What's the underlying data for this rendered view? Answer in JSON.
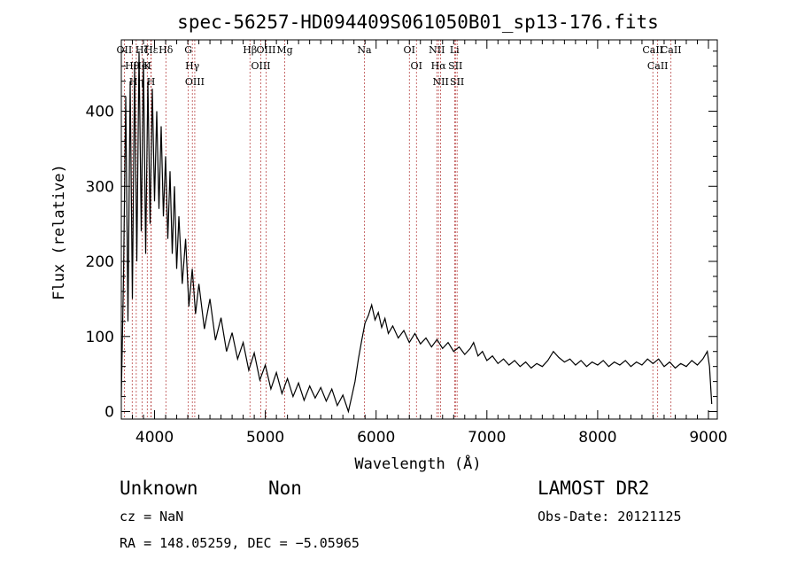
{
  "chart_data": {
    "type": "line",
    "title": "spec-56257-HD094409S061050B01_sp13-176.fits",
    "xlabel": "Wavelength (Å)",
    "ylabel": "Flux (relative)",
    "xlim": [
      3700,
      9080
    ],
    "ylim": [
      -10,
      495
    ],
    "xticks": [
      4000,
      5000,
      6000,
      7000,
      8000,
      9000
    ],
    "yticks": [
      0,
      100,
      200,
      300,
      400
    ],
    "grid": false,
    "series": [
      {
        "color": "#000000",
        "points": [
          [
            3700,
            20
          ],
          [
            3720,
            180
          ],
          [
            3740,
            420
          ],
          [
            3760,
            120
          ],
          [
            3780,
            440
          ],
          [
            3800,
            150
          ],
          [
            3820,
            460
          ],
          [
            3840,
            200
          ],
          [
            3860,
            480
          ],
          [
            3880,
            240
          ],
          [
            3900,
            470
          ],
          [
            3920,
            210
          ],
          [
            3940,
            440
          ],
          [
            3960,
            250
          ],
          [
            3980,
            430
          ],
          [
            4000,
            280
          ],
          [
            4020,
            400
          ],
          [
            4040,
            270
          ],
          [
            4060,
            380
          ],
          [
            4080,
            260
          ],
          [
            4100,
            340
          ],
          [
            4120,
            230
          ],
          [
            4140,
            320
          ],
          [
            4160,
            210
          ],
          [
            4180,
            300
          ],
          [
            4200,
            190
          ],
          [
            4220,
            260
          ],
          [
            4250,
            170
          ],
          [
            4280,
            230
          ],
          [
            4310,
            140
          ],
          [
            4340,
            190
          ],
          [
            4370,
            130
          ],
          [
            4400,
            170
          ],
          [
            4450,
            110
          ],
          [
            4500,
            150
          ],
          [
            4550,
            95
          ],
          [
            4600,
            125
          ],
          [
            4650,
            80
          ],
          [
            4700,
            105
          ],
          [
            4750,
            70
          ],
          [
            4800,
            92
          ],
          [
            4850,
            55
          ],
          [
            4900,
            78
          ],
          [
            4950,
            42
          ],
          [
            5000,
            62
          ],
          [
            5050,
            30
          ],
          [
            5100,
            52
          ],
          [
            5150,
            24
          ],
          [
            5200,
            44
          ],
          [
            5250,
            20
          ],
          [
            5300,
            38
          ],
          [
            5350,
            15
          ],
          [
            5400,
            34
          ],
          [
            5450,
            18
          ],
          [
            5500,
            32
          ],
          [
            5550,
            14
          ],
          [
            5600,
            30
          ],
          [
            5650,
            8
          ],
          [
            5700,
            22
          ],
          [
            5750,
            0
          ],
          [
            5780,
            20
          ],
          [
            5810,
            40
          ],
          [
            5840,
            70
          ],
          [
            5870,
            95
          ],
          [
            5900,
            118
          ],
          [
            5930,
            128
          ],
          [
            5960,
            142
          ],
          [
            5990,
            122
          ],
          [
            6020,
            132
          ],
          [
            6050,
            112
          ],
          [
            6080,
            124
          ],
          [
            6110,
            104
          ],
          [
            6150,
            114
          ],
          [
            6200,
            98
          ],
          [
            6250,
            108
          ],
          [
            6300,
            92
          ],
          [
            6350,
            104
          ],
          [
            6400,
            90
          ],
          [
            6450,
            98
          ],
          [
            6500,
            86
          ],
          [
            6550,
            96
          ],
          [
            6600,
            84
          ],
          [
            6650,
            92
          ],
          [
            6700,
            80
          ],
          [
            6750,
            86
          ],
          [
            6800,
            76
          ],
          [
            6850,
            84
          ],
          [
            6880,
            92
          ],
          [
            6920,
            74
          ],
          [
            6960,
            80
          ],
          [
            7000,
            68
          ],
          [
            7050,
            74
          ],
          [
            7100,
            64
          ],
          [
            7150,
            70
          ],
          [
            7200,
            62
          ],
          [
            7250,
            68
          ],
          [
            7300,
            60
          ],
          [
            7350,
            66
          ],
          [
            7400,
            58
          ],
          [
            7450,
            64
          ],
          [
            7500,
            60
          ],
          [
            7550,
            68
          ],
          [
            7600,
            80
          ],
          [
            7650,
            72
          ],
          [
            7700,
            66
          ],
          [
            7750,
            70
          ],
          [
            7800,
            62
          ],
          [
            7850,
            68
          ],
          [
            7900,
            60
          ],
          [
            7950,
            66
          ],
          [
            8000,
            62
          ],
          [
            8050,
            68
          ],
          [
            8100,
            60
          ],
          [
            8150,
            66
          ],
          [
            8200,
            62
          ],
          [
            8250,
            68
          ],
          [
            8300,
            60
          ],
          [
            8350,
            66
          ],
          [
            8400,
            62
          ],
          [
            8450,
            70
          ],
          [
            8500,
            64
          ],
          [
            8550,
            70
          ],
          [
            8600,
            60
          ],
          [
            8650,
            66
          ],
          [
            8700,
            58
          ],
          [
            8750,
            64
          ],
          [
            8800,
            60
          ],
          [
            8850,
            68
          ],
          [
            8900,
            62
          ],
          [
            8950,
            70
          ],
          [
            8990,
            80
          ],
          [
            9010,
            60
          ],
          [
            9030,
            10
          ]
        ]
      }
    ],
    "lines": [
      {
        "wave": 3727,
        "labels": [
          "OII"
        ]
      },
      {
        "wave": 3798,
        "labels": [
          "Hθ"
        ]
      },
      {
        "wave": 3835,
        "labels": [
          "Hη"
        ]
      },
      {
        "wave": 3889,
        "labels": [
          "Hζ",
          "HeI"
        ]
      },
      {
        "wave": 3934,
        "labels": [
          "K"
        ]
      },
      {
        "wave": 3968,
        "labels": [
          "H"
        ]
      },
      {
        "wave": 3970,
        "labels": [
          "Hε"
        ]
      },
      {
        "wave": 4102,
        "labels": [
          "Hδ"
        ]
      },
      {
        "wave": 4305,
        "labels": [
          "G"
        ]
      },
      {
        "wave": 4341,
        "labels": [
          "Hγ"
        ]
      },
      {
        "wave": 4363,
        "labels": [
          "OIII"
        ]
      },
      {
        "wave": 4861,
        "labels": [
          "Hβ"
        ]
      },
      {
        "wave": 4959,
        "labels": [
          "OIII"
        ]
      },
      {
        "wave": 5007,
        "labels": [
          "OIII"
        ]
      },
      {
        "wave": 5175,
        "labels": [
          "Mg"
        ]
      },
      {
        "wave": 5894,
        "labels": [
          "Na"
        ]
      },
      {
        "wave": 6300,
        "labels": [
          "OI"
        ]
      },
      {
        "wave": 6364,
        "labels": [
          "OI"
        ]
      },
      {
        "wave": 6548,
        "labels": [
          "NII"
        ]
      },
      {
        "wave": 6563,
        "labels": [
          "Hα"
        ]
      },
      {
        "wave": 6583,
        "labels": [
          "NII"
        ]
      },
      {
        "wave": 6708,
        "labels": [
          "Li"
        ]
      },
      {
        "wave": 6716,
        "labels": [
          "SII"
        ]
      },
      {
        "wave": 6731,
        "labels": [
          "SII"
        ]
      },
      {
        "wave": 8498,
        "labels": [
          "CaII"
        ]
      },
      {
        "wave": 8542,
        "labels": [
          "CaII"
        ]
      },
      {
        "wave": 8662,
        "labels": [
          "CaII"
        ]
      }
    ]
  },
  "info": {
    "class": "Unknown",
    "subclass": "Non",
    "survey": "LAMOST DR2",
    "cz": "cz = NaN",
    "obs_date": "Obs-Date: 20121125",
    "coords": "RA = 148.05259, DEC =  −5.05965"
  }
}
